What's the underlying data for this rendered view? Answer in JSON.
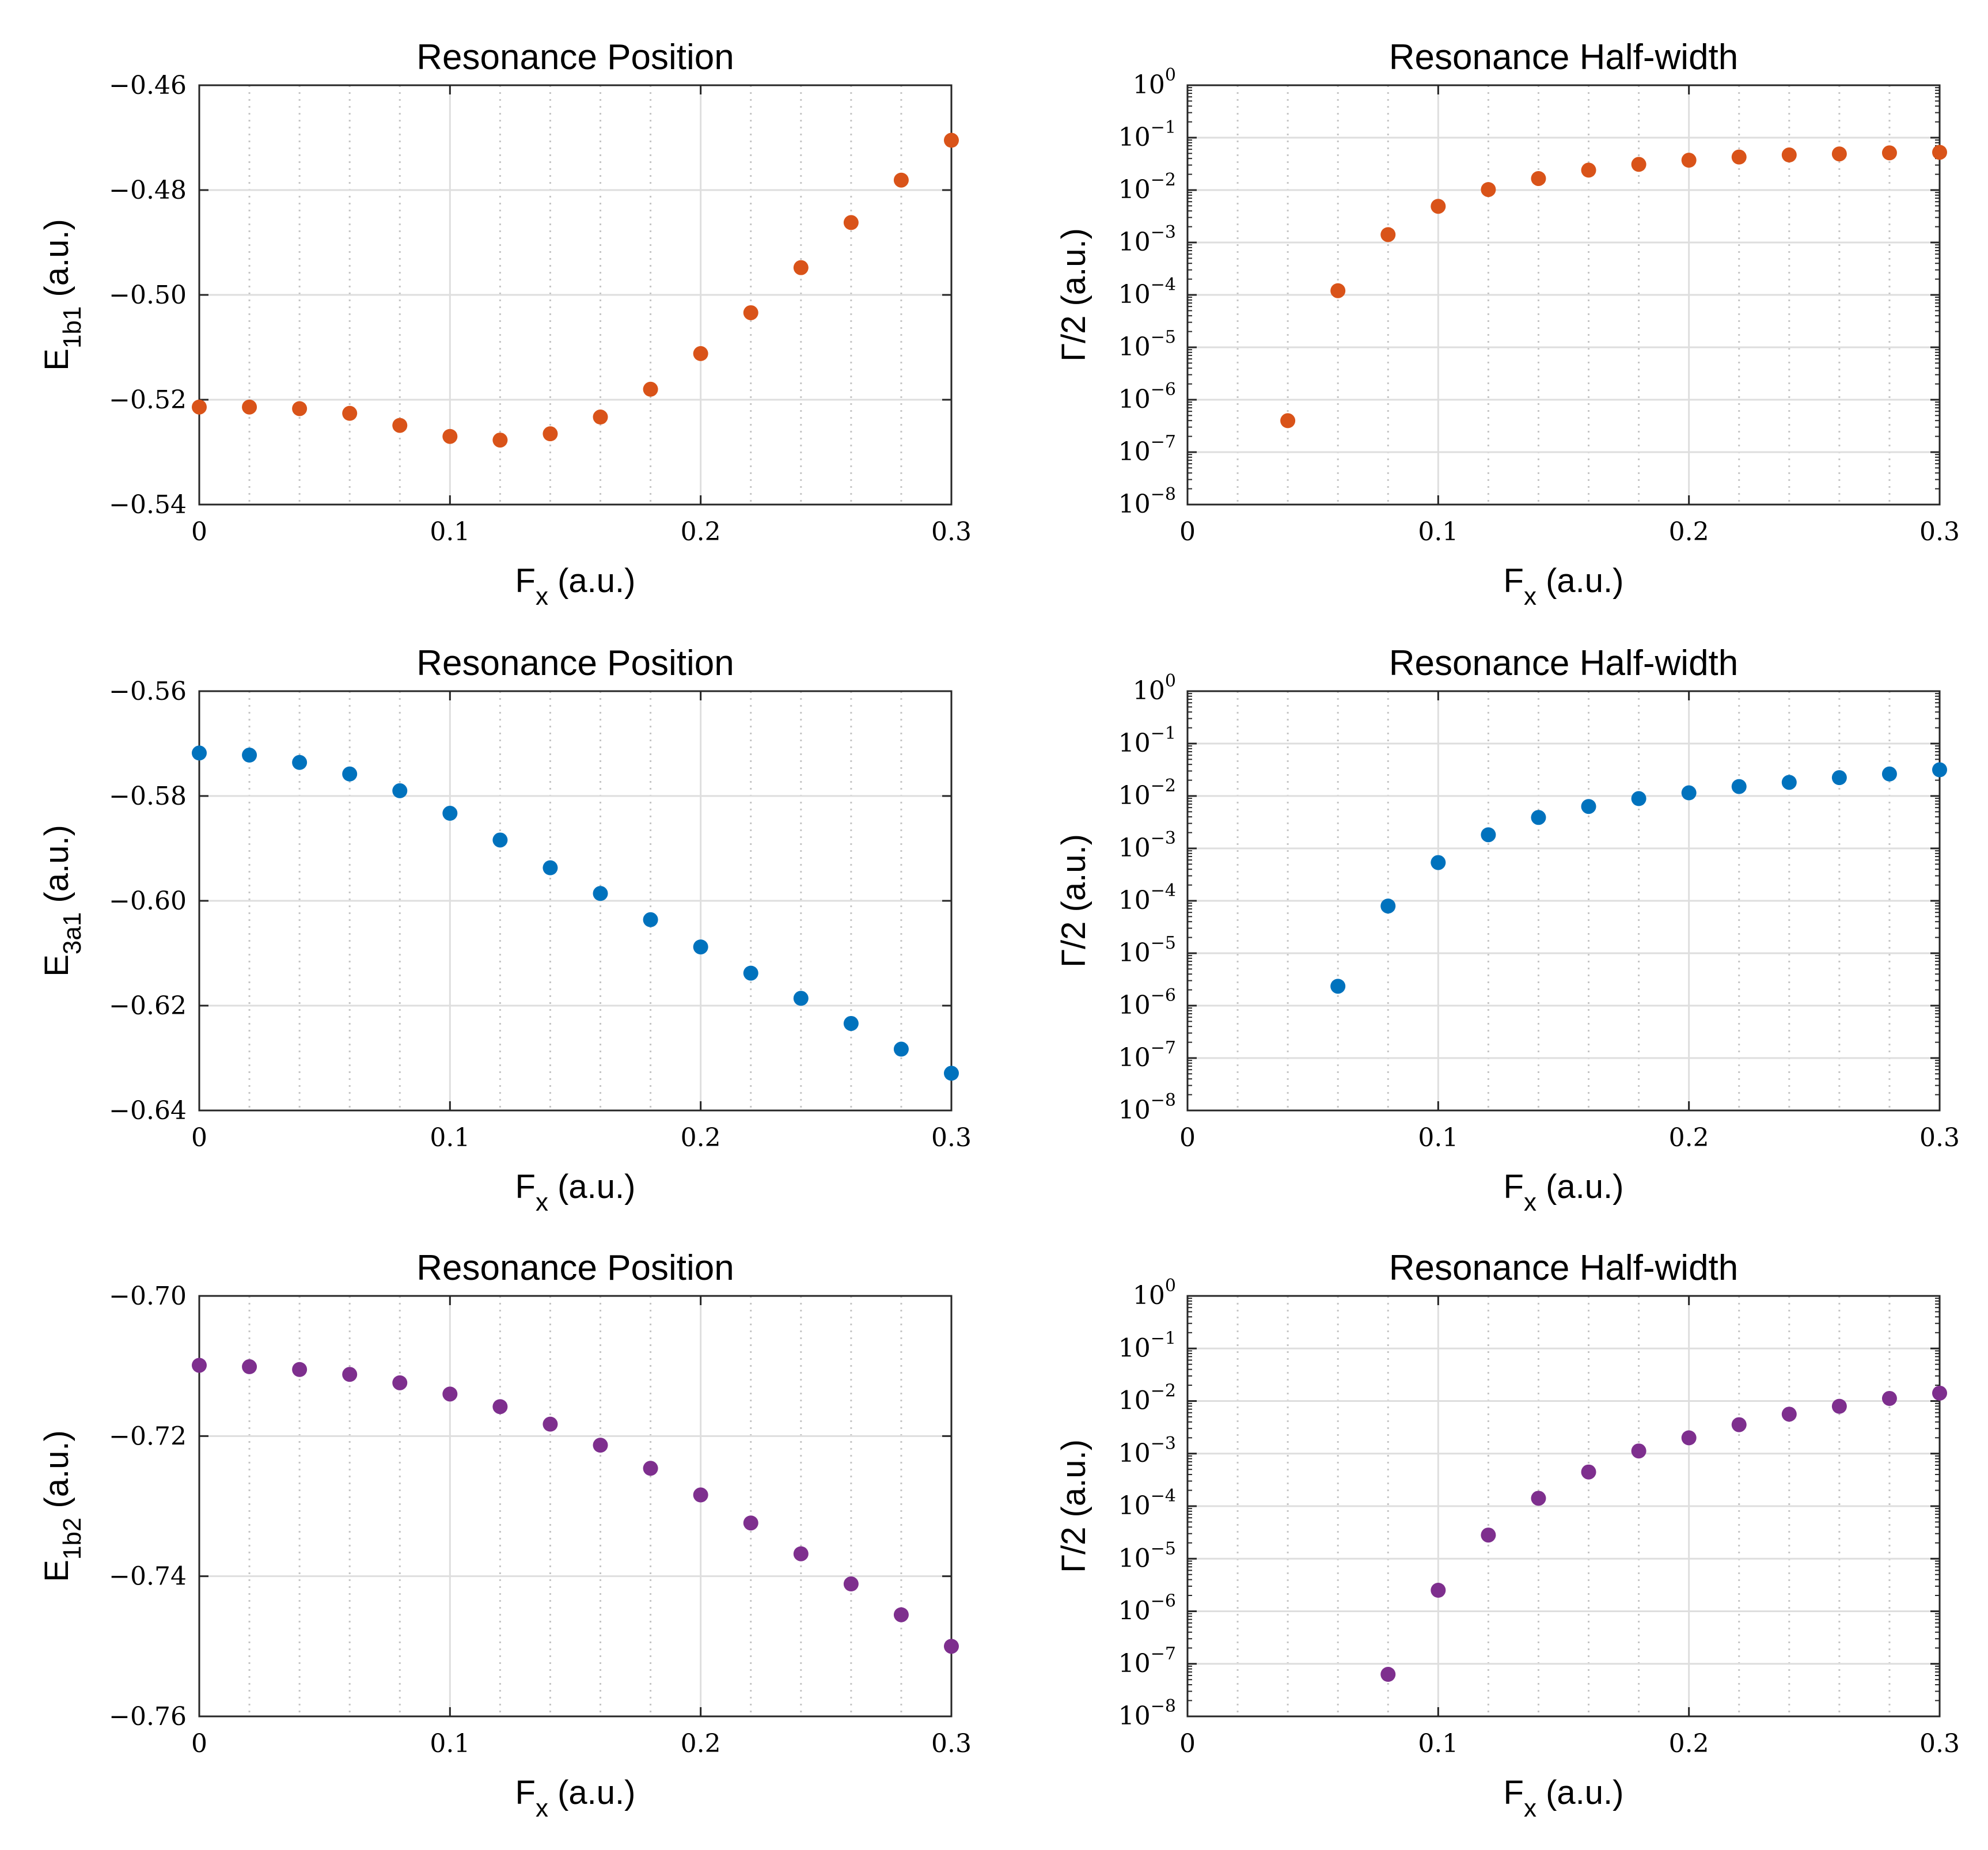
{
  "colors": {
    "orange": "#D95319",
    "blue": "#0072BD",
    "purple": "#7E2F8E"
  },
  "chart_data": [
    {
      "type": "scatter",
      "title": "Resonance Position",
      "xlabel_main": "F",
      "xlabel_sub": "x",
      "xlabel_suffix": " (a.u.)",
      "ylabel_main": "E",
      "ylabel_sub": "1b1",
      "ylabel_suffix": " (a.u.)",
      "xlim": [
        0,
        0.3
      ],
      "ylim": [
        -0.54,
        -0.46
      ],
      "xticks": [
        0,
        0.1,
        0.2,
        0.3
      ],
      "xtick_labels": [
        "0",
        "0.1",
        "0.2",
        "0.3"
      ],
      "yticks": [
        -0.54,
        -0.52,
        -0.5,
        -0.48,
        -0.46
      ],
      "ytick_labels": [
        "−0.54",
        "−0.52",
        "−0.50",
        "−0.48",
        "−0.46"
      ],
      "grid": true,
      "yscale": "linear",
      "color": "orange",
      "x": [
        0,
        0.02,
        0.04,
        0.06,
        0.08,
        0.1,
        0.12,
        0.14,
        0.16,
        0.18,
        0.2,
        0.22,
        0.24,
        0.26,
        0.28,
        0.3
      ],
      "y": [
        -0.5214,
        -0.5214,
        -0.5217,
        -0.5226,
        -0.5249,
        -0.527,
        -0.5277,
        -0.5265,
        -0.5233,
        -0.518,
        -0.5112,
        -0.5034,
        -0.4948,
        -0.4862,
        -0.4781,
        -0.4705
      ]
    },
    {
      "type": "scatter",
      "title": "Resonance Half-width",
      "xlabel_main": "F",
      "xlabel_sub": "x",
      "xlabel_suffix": " (a.u.)",
      "ylabel_text": "Γ/2 (a.u.)",
      "xlim": [
        0,
        0.3
      ],
      "ylim_exp": [
        -8,
        0
      ],
      "xticks": [
        0,
        0.1,
        0.2,
        0.3
      ],
      "xtick_labels": [
        "0",
        "0.1",
        "0.2",
        "0.3"
      ],
      "ytick_base": "10",
      "ytick_exps": [
        "0",
        "−1",
        "−2",
        "−3",
        "−4",
        "−5",
        "−6",
        "−7",
        "−8"
      ],
      "grid": true,
      "yscale": "log",
      "color": "orange",
      "x": [
        0.04,
        0.06,
        0.08,
        0.1,
        0.12,
        0.14,
        0.16,
        0.18,
        0.2,
        0.22,
        0.24,
        0.26,
        0.28,
        0.3
      ],
      "log10_y": [
        -6.4,
        -3.92,
        -2.85,
        -2.31,
        -1.99,
        -1.78,
        -1.62,
        -1.51,
        -1.43,
        -1.37,
        -1.33,
        -1.31,
        -1.29,
        -1.28
      ]
    },
    {
      "type": "scatter",
      "title": "Resonance Position",
      "xlabel_main": "F",
      "xlabel_sub": "x",
      "xlabel_suffix": " (a.u.)",
      "ylabel_main": "E",
      "ylabel_sub": "3a1",
      "ylabel_suffix": " (a.u.)",
      "xlim": [
        0,
        0.3
      ],
      "ylim": [
        -0.64,
        -0.56
      ],
      "xticks": [
        0,
        0.1,
        0.2,
        0.3
      ],
      "xtick_labels": [
        "0",
        "0.1",
        "0.2",
        "0.3"
      ],
      "yticks": [
        -0.64,
        -0.62,
        -0.6,
        -0.58,
        -0.56
      ],
      "ytick_labels": [
        "−0.64",
        "−0.62",
        "−0.60",
        "−0.58",
        "−0.56"
      ],
      "grid": true,
      "yscale": "linear",
      "color": "blue",
      "x": [
        0,
        0.02,
        0.04,
        0.06,
        0.08,
        0.1,
        0.12,
        0.14,
        0.16,
        0.18,
        0.2,
        0.22,
        0.24,
        0.26,
        0.28,
        0.3
      ],
      "y": [
        -0.5718,
        -0.5722,
        -0.5736,
        -0.5758,
        -0.579,
        -0.5833,
        -0.5884,
        -0.5937,
        -0.5986,
        -0.6036,
        -0.6088,
        -0.6138,
        -0.6186,
        -0.6234,
        -0.6283,
        -0.6329
      ]
    },
    {
      "type": "scatter",
      "title": "Resonance Half-width",
      "xlabel_main": "F",
      "xlabel_sub": "x",
      "xlabel_suffix": " (a.u.)",
      "ylabel_text": "Γ/2 (a.u.)",
      "xlim": [
        0,
        0.3
      ],
      "ylim_exp": [
        -8,
        0
      ],
      "xticks": [
        0,
        0.1,
        0.2,
        0.3
      ],
      "xtick_labels": [
        "0",
        "0.1",
        "0.2",
        "0.3"
      ],
      "ytick_base": "10",
      "ytick_exps": [
        "0",
        "−1",
        "−2",
        "−3",
        "−4",
        "−5",
        "−6",
        "−7",
        "−8"
      ],
      "grid": true,
      "yscale": "log",
      "color": "blue",
      "x": [
        0.06,
        0.08,
        0.1,
        0.12,
        0.14,
        0.16,
        0.18,
        0.2,
        0.22,
        0.24,
        0.26,
        0.28,
        0.3
      ],
      "log10_y": [
        -5.63,
        -4.1,
        -3.27,
        -2.74,
        -2.41,
        -2.2,
        -2.05,
        -1.94,
        -1.82,
        -1.74,
        -1.65,
        -1.58,
        -1.5
      ]
    },
    {
      "type": "scatter",
      "title": "Resonance Position",
      "xlabel_main": "F",
      "xlabel_sub": "x",
      "xlabel_suffix": " (a.u.)",
      "ylabel_main": "E",
      "ylabel_sub": "1b2",
      "ylabel_suffix": " (a.u.)",
      "xlim": [
        0,
        0.3
      ],
      "ylim": [
        -0.76,
        -0.7
      ],
      "xticks": [
        0,
        0.1,
        0.2,
        0.3
      ],
      "xtick_labels": [
        "0",
        "0.1",
        "0.2",
        "0.3"
      ],
      "yticks": [
        -0.76,
        -0.74,
        -0.72,
        -0.7
      ],
      "ytick_labels": [
        "−0.76",
        "−0.74",
        "−0.72",
        "−0.70"
      ],
      "grid": true,
      "yscale": "linear",
      "color": "purple",
      "x": [
        0,
        0.02,
        0.04,
        0.06,
        0.08,
        0.1,
        0.12,
        0.14,
        0.16,
        0.18,
        0.2,
        0.22,
        0.24,
        0.26,
        0.28,
        0.3
      ],
      "y": [
        -0.7099,
        -0.7101,
        -0.7105,
        -0.7112,
        -0.7124,
        -0.714,
        -0.7158,
        -0.7183,
        -0.7213,
        -0.7246,
        -0.7284,
        -0.7324,
        -0.7368,
        -0.7411,
        -0.7455,
        -0.75
      ]
    },
    {
      "type": "scatter",
      "title": "Resonance Half-width",
      "xlabel_main": "F",
      "xlabel_sub": "x",
      "xlabel_suffix": " (a.u.)",
      "ylabel_text": "Γ/2 (a.u.)",
      "xlim": [
        0,
        0.3
      ],
      "ylim_exp": [
        -8,
        0
      ],
      "xticks": [
        0,
        0.1,
        0.2,
        0.3
      ],
      "xtick_labels": [
        "0",
        "0.1",
        "0.2",
        "0.3"
      ],
      "ytick_base": "10",
      "ytick_exps": [
        "0",
        "−1",
        "−2",
        "−3",
        "−4",
        "−5",
        "−6",
        "−7",
        "−8"
      ],
      "grid": true,
      "yscale": "log",
      "color": "purple",
      "x": [
        0.08,
        0.1,
        0.12,
        0.14,
        0.16,
        0.18,
        0.2,
        0.22,
        0.24,
        0.26,
        0.28,
        0.3
      ],
      "log10_y": [
        -7.2,
        -5.6,
        -4.55,
        -3.85,
        -3.35,
        -2.95,
        -2.7,
        -2.45,
        -2.25,
        -2.1,
        -1.95,
        -1.85
      ]
    }
  ]
}
